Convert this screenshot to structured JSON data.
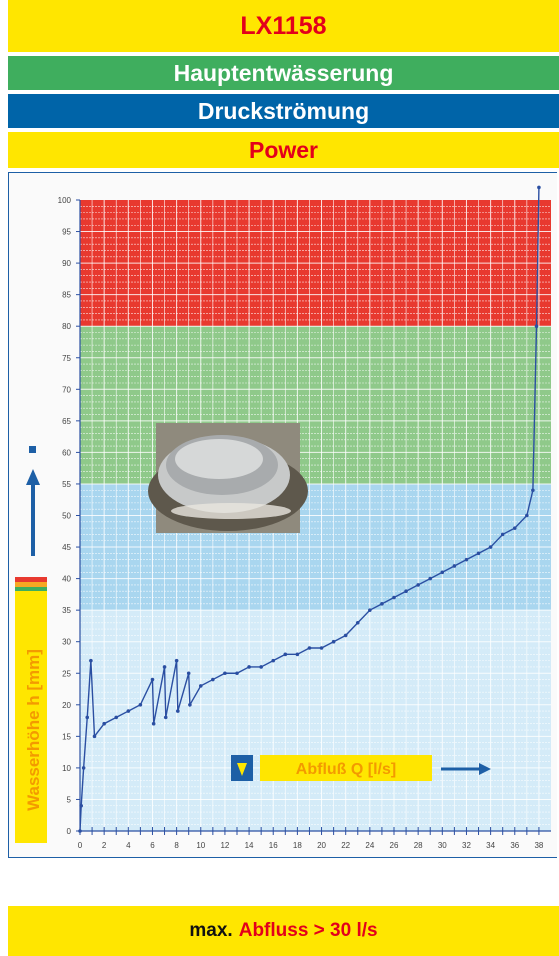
{
  "header": {
    "model": "LX1158",
    "line1": "Hauptentwässerung",
    "line2": "Druckströmung",
    "line3": "Power"
  },
  "footer": {
    "prefix": "max.",
    "value": "Abfluss > 30 l/s"
  },
  "colors": {
    "yellow": "#ffe600",
    "red": "#e3001b",
    "green": "#3fae5e",
    "blue": "#0064a8",
    "zone_red": "#e8392f",
    "zone_green": "#8fc98a",
    "zone_blue_dark": "#a9d6ef",
    "zone_blue_light": "#d4ebf8",
    "curve": "#2b4fa2"
  },
  "chart_data": {
    "type": "line",
    "xlabel": "Abfluß Q [l/s]",
    "ylabel": "Wasserhöhe h [mm]",
    "xlim": [
      0,
      39
    ],
    "ylim": [
      0,
      100
    ],
    "x_ticks": [
      "0",
      "2",
      "4",
      "6",
      "8",
      "10",
      "12",
      "14",
      "16",
      "18",
      "20",
      "22",
      "24",
      "26",
      "28",
      "30",
      "32",
      "34",
      "36",
      "38"
    ],
    "y_ticks": [
      "0",
      "5",
      "10",
      "15",
      "20",
      "25",
      "30",
      "35",
      "40",
      "45",
      "50",
      "55",
      "60",
      "65",
      "70",
      "75",
      "80",
      "85",
      "90",
      "95",
      "100"
    ],
    "zones": [
      {
        "from": 80,
        "to": 100,
        "color": "#e8392f"
      },
      {
        "from": 55,
        "to": 80,
        "color": "#8fc98a"
      },
      {
        "from": 35,
        "to": 55,
        "color": "#a9d6ef"
      },
      {
        "from": 0,
        "to": 35,
        "color": "#d4ebf8"
      }
    ],
    "series": [
      {
        "x": [
          0,
          0.1,
          0.3,
          0.6,
          0.9,
          1.2,
          2,
          3,
          4,
          5,
          6,
          6.1,
          7,
          7.1,
          8,
          8.1,
          9,
          9.1,
          10,
          11,
          12,
          13,
          14,
          15,
          16,
          17,
          18,
          19,
          20,
          21,
          22,
          23,
          24,
          25,
          26,
          27,
          28,
          29,
          30,
          31,
          32,
          33,
          34,
          35,
          36,
          37,
          37.5,
          37.8,
          38
        ],
        "y": [
          0,
          4,
          10,
          18,
          27,
          15,
          17,
          18,
          19,
          20,
          24,
          17,
          26,
          18,
          27,
          19,
          25,
          20,
          23,
          24,
          25,
          25,
          26,
          26,
          27,
          28,
          28,
          29,
          29,
          30,
          31,
          33,
          35,
          36,
          37,
          38,
          39,
          40,
          41,
          42,
          43,
          44,
          45,
          47,
          48,
          50,
          54,
          80,
          102
        ]
      }
    ]
  }
}
